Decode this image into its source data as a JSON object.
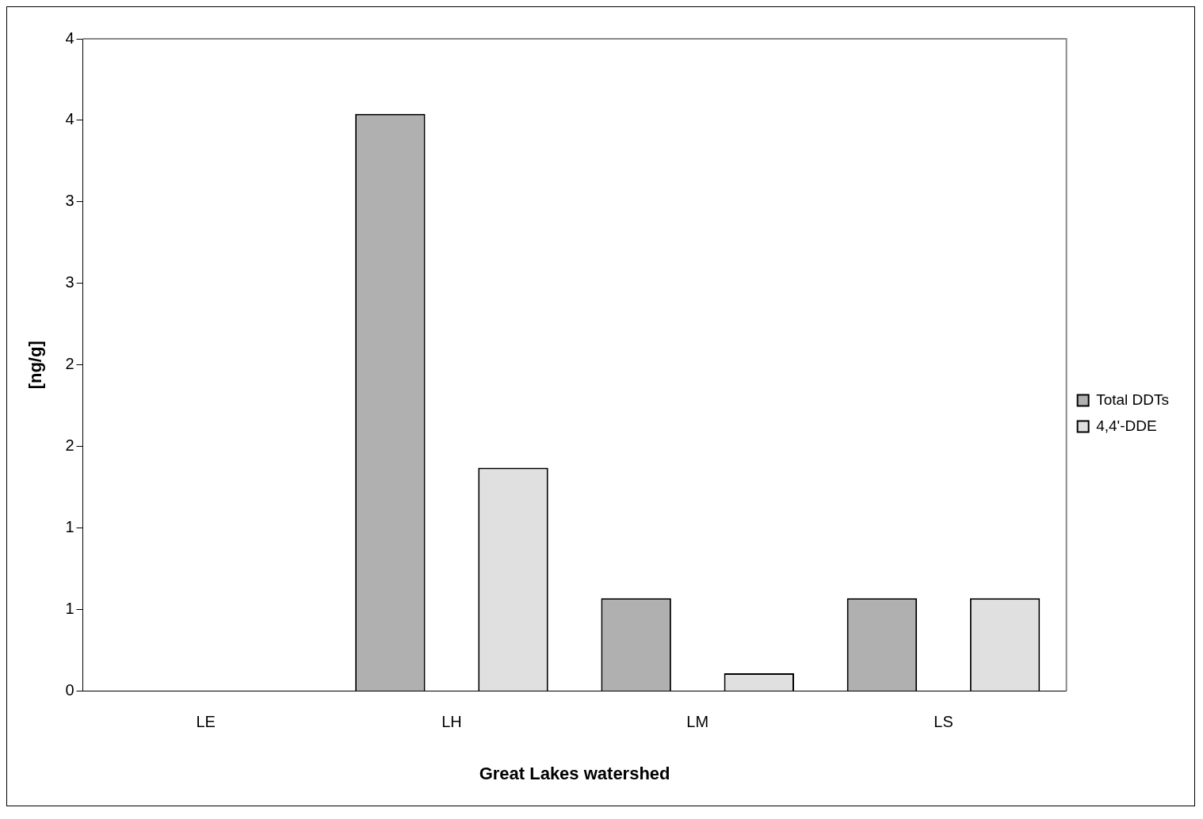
{
  "chart_data": {
    "type": "bar",
    "xlabel": "Great Lakes watershed",
    "ylabel": "[ng/g]",
    "categories": [
      "LE",
      "LH",
      "LM",
      "LS"
    ],
    "series": [
      {
        "name": "Total DDTs",
        "color": "#b0b0b0",
        "values": [
          null,
          3.54,
          0.57,
          0.57
        ]
      },
      {
        "name": "4,4'-DDE",
        "color": "#e0e0e0",
        "values": [
          null,
          1.37,
          0.11,
          0.57
        ]
      }
    ],
    "ylim": [
      0,
      4
    ],
    "yticks": [
      0,
      {
        "value": 0.5,
        "label": "1"
      },
      1,
      {
        "value": 1.5,
        "label": "2"
      },
      2,
      {
        "value": 2.5,
        "label": "3"
      },
      3,
      {
        "value": 3.5,
        "label": "4"
      },
      4
    ],
    "grid": false,
    "legend": "right"
  }
}
